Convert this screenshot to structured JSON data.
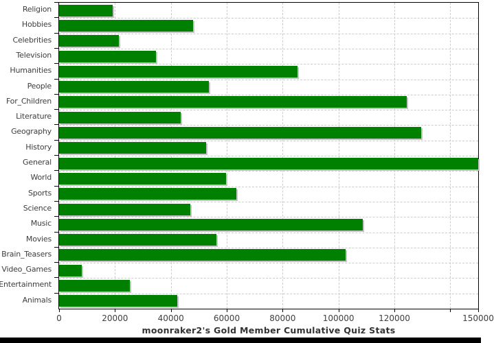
{
  "chart_data": {
    "type": "bar",
    "orientation": "horizontal",
    "title": "moonraker2's Gold Member Cumulative Quiz Stats",
    "categories": [
      "Religion",
      "Hobbies",
      "Celebrities",
      "Television",
      "Humanities",
      "People",
      "For_Children",
      "Literature",
      "Geography",
      "History",
      "General",
      "World",
      "Sports",
      "Science",
      "Music",
      "Movies",
      "Brain_Teasers",
      "Video_Games",
      "Entertainment",
      "Animals"
    ],
    "values": [
      19100,
      48000,
      21500,
      34600,
      85300,
      53700,
      124500,
      43600,
      129700,
      52500,
      150000,
      59800,
      63500,
      47000,
      108600,
      56400,
      102500,
      8100,
      25300,
      42400
    ],
    "xlabel": "",
    "ylabel": "",
    "xlim": [
      0,
      150000
    ],
    "xticks": [
      {
        "value": 0,
        "label": "0"
      },
      {
        "value": 20000,
        "label": "20000"
      },
      {
        "value": 40000,
        "label": "40000"
      },
      {
        "value": 60000,
        "label": "60000"
      },
      {
        "value": 80000,
        "label": "80000"
      },
      {
        "value": 100000,
        "label": "100000"
      },
      {
        "value": 120000,
        "label": "120000"
      },
      {
        "value": 140000,
        "label": ""
      },
      {
        "value": 150000,
        "label": "150000"
      }
    ],
    "grid": "dashed, vertical at value ticks and horizontal at category boundaries",
    "legend": "none",
    "colors": {
      "bar_fill": "#008000",
      "bar_shadow": "#c3c3c3",
      "gridline": "#cccccc",
      "plot_border": "#000000",
      "tick_text": "#3d3d3d",
      "title_text": "#333333",
      "background": "#ffffff",
      "footer_strip": "#000000"
    }
  }
}
